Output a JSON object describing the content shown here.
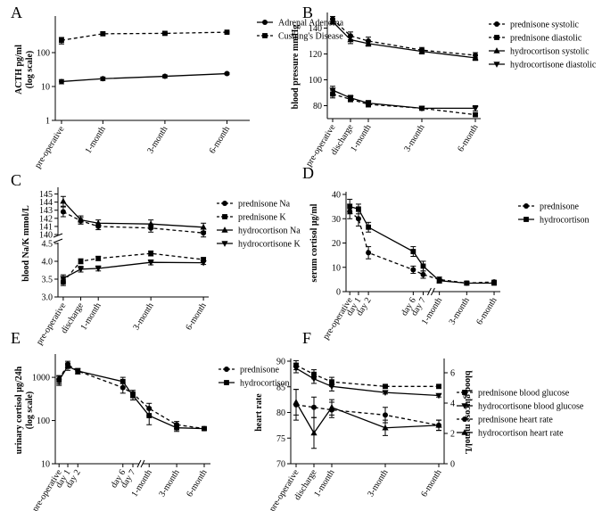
{
  "chart_data": [
    {
      "panel": "A",
      "type": "line",
      "ylabel": "ACTH pg/ml (log scale)",
      "yscale": "log",
      "ylim": [
        1,
        1000
      ],
      "yticks": [
        "1",
        "10",
        "100"
      ],
      "categories": [
        "pre-operative",
        "1-month",
        "3-month",
        "6-month"
      ],
      "x": [
        0,
        1,
        2.5,
        4
      ],
      "legend_position": "right",
      "series": [
        {
          "name": "Adrenal Adenoma",
          "marker": "circle",
          "dash": false,
          "values": [
            14,
            17,
            20,
            24
          ],
          "errors": [
            2,
            2,
            2,
            1.5
          ]
        },
        {
          "name": "Cushing's Disease",
          "marker": "square",
          "dash": true,
          "values": [
            230,
            360,
            370,
            400
          ],
          "errors": [
            50,
            40,
            30,
            20
          ]
        }
      ]
    },
    {
      "panel": "B",
      "type": "line",
      "ylabel": "blood pressure mmHg",
      "ylim": [
        70,
        150
      ],
      "yticks": [
        "80",
        "100",
        "120",
        "140"
      ],
      "categories": [
        "pre-operative",
        "discharge",
        "1-month",
        "3-month",
        "6-month"
      ],
      "x": [
        0,
        0.5,
        1,
        2.5,
        4
      ],
      "legend_position": "right",
      "series": [
        {
          "name": "prednisone systolic",
          "marker": "circle",
          "dash": true,
          "values": [
            147,
            134,
            130,
            123,
            119
          ],
          "errors": [
            2,
            3,
            3,
            2,
            2
          ]
        },
        {
          "name": "prednisone diastolic",
          "marker": "square",
          "dash": true,
          "values": [
            89,
            85,
            81,
            78,
            73
          ],
          "errors": [
            3,
            2,
            2,
            1,
            1
          ]
        },
        {
          "name": "hydrocortison systolic",
          "marker": "triangle-up",
          "dash": false,
          "values": [
            145,
            131,
            128,
            122,
            117
          ],
          "errors": [
            2,
            3,
            2,
            2,
            2
          ]
        },
        {
          "name": "hydrocortisone diastolic",
          "marker": "triangle-down",
          "dash": false,
          "values": [
            92,
            86,
            82,
            78,
            78
          ],
          "errors": [
            3,
            2,
            2,
            1,
            2
          ]
        }
      ]
    },
    {
      "panel": "C",
      "type": "line",
      "ylabel": "blood Na/K mmol/L",
      "split_axis": true,
      "ylim_lower": [
        3.0,
        4.5
      ],
      "ylim_upper": [
        140,
        145.5
      ],
      "yticks_lower": [
        "3.0",
        "3.5",
        "4.0",
        "4.5"
      ],
      "yticks_upper": [
        "140",
        "141",
        "142",
        "143",
        "144",
        "145"
      ],
      "categories": [
        "pre-operative",
        "discharge",
        "1-month",
        "3-month",
        "6-month"
      ],
      "x": [
        0,
        0.5,
        1,
        2.5,
        4
      ],
      "legend_position": "right",
      "series": [
        {
          "name": "prednisone Na",
          "marker": "circle",
          "dash": true,
          "values": [
            142.8,
            141.7,
            141.0,
            140.8,
            140.2
          ],
          "errors": [
            0.6,
            0.4,
            0.4,
            0.5,
            0.5
          ]
        },
        {
          "name": "prednisone K",
          "marker": "square",
          "dash": true,
          "values": [
            3.42,
            4.0,
            4.08,
            4.22,
            4.05
          ],
          "errors": [
            0.1,
            0.07,
            0.06,
            0.07,
            0.05
          ]
        },
        {
          "name": "hydrocortison Na",
          "marker": "triangle-up",
          "dash": false,
          "values": [
            144.1,
            141.8,
            141.4,
            141.3,
            140.9
          ],
          "errors": [
            0.6,
            0.5,
            0.4,
            0.5,
            0.5
          ]
        },
        {
          "name": "hydrocortisone K",
          "marker": "triangle-down",
          "dash": false,
          "values": [
            3.52,
            3.78,
            3.8,
            3.97,
            3.96
          ],
          "errors": [
            0.1,
            0.08,
            0.07,
            0.07,
            0.05
          ]
        }
      ]
    },
    {
      "panel": "D",
      "type": "line",
      "ylabel": "serum cortisol μg/ml",
      "ylim": [
        0,
        40
      ],
      "yticks": [
        "0",
        "10",
        "20",
        "30",
        "40"
      ],
      "categories": [
        "pre-operative",
        "day 1",
        "day 2",
        "day 6",
        "day 7",
        "1-month",
        "3-month",
        "6-month"
      ],
      "x": [
        0,
        0.35,
        0.75,
        2.55,
        2.95,
        3.6,
        4.7,
        5.8
      ],
      "legend_position": "right",
      "series": [
        {
          "name": "prednisone",
          "marker": "circle",
          "dash": true,
          "values": [
            33,
            30,
            16,
            9,
            7,
            5,
            3.5,
            4
          ],
          "errors": [
            3,
            3,
            2.5,
            1.5,
            1.5,
            1,
            0.7,
            0.7
          ]
        },
        {
          "name": "hydrocortison",
          "marker": "square",
          "dash": false,
          "values": [
            35,
            34,
            26.5,
            16.5,
            10.5,
            4.5,
            3.5,
            3.5
          ],
          "errors": [
            3,
            2,
            2,
            2,
            2,
            1,
            0.7,
            0.7
          ]
        }
      ]
    },
    {
      "panel": "E",
      "type": "line",
      "ylabel": "urinary cortisol μg/24h (log scale)",
      "yscale": "log",
      "ylim": [
        10,
        3000
      ],
      "yticks": [
        "10",
        "100",
        "1000"
      ],
      "categories": [
        "pre-operative",
        "day 1",
        "day 2",
        "day 6",
        "day 7",
        "1-month",
        "3-month",
        "6-month"
      ],
      "x": [
        0,
        0.35,
        0.75,
        2.55,
        2.95,
        3.6,
        4.7,
        5.8
      ],
      "legend_position": "right",
      "series": [
        {
          "name": "prednisone",
          "marker": "circle",
          "dash": true,
          "values": [
            900,
            2000,
            1400,
            580,
            420,
            190,
            80,
            65
          ],
          "errors": [
            200,
            350,
            200,
            150,
            80,
            60,
            15,
            5
          ]
        },
        {
          "name": "hydrocortison",
          "marker": "square",
          "dash": false,
          "values": [
            850,
            1800,
            1400,
            800,
            380,
            130,
            68,
            65
          ],
          "errors": [
            200,
            350,
            200,
            200,
            80,
            50,
            12,
            5
          ]
        }
      ]
    },
    {
      "panel": "F",
      "type": "line",
      "ylabel": "heart rate",
      "ylabel_right": "blood glucose mmol/L",
      "ylim": [
        70,
        90
      ],
      "yticks": [
        "70",
        "75",
        "80",
        "85",
        "90"
      ],
      "ylim_right": [
        0,
        7
      ],
      "yticks_right": [
        "0",
        "2",
        "4",
        "6"
      ],
      "categories": [
        "pre-operative",
        "discharge",
        "1-month",
        "3-month",
        "6-month"
      ],
      "x": [
        0,
        0.5,
        1,
        2.5,
        4
      ],
      "legend_position": "right",
      "series": [
        {
          "name": "prednisone blood glucose",
          "marker": "square",
          "dash": true,
          "axis": "right",
          "values": [
            6.5,
            5.9,
            5.4,
            5.1,
            5.1
          ],
          "errors": [
            0.3,
            0.3,
            0.3,
            0.1,
            0.1
          ]
        },
        {
          "name": "hydrocortisone blood glucose",
          "marker": "triangle-down",
          "dash": false,
          "axis": "right",
          "values": [
            6.3,
            5.6,
            5.1,
            4.7,
            4.5
          ],
          "errors": [
            0.3,
            0.3,
            0.3,
            0.1,
            0.1
          ]
        },
        {
          "name": "prednisone heart rate",
          "marker": "circle",
          "dash": true,
          "axis": "left",
          "values": [
            81.5,
            81,
            80.5,
            79.5,
            77.5
          ],
          "errors": [
            3,
            2,
            1.5,
            1.5,
            1
          ]
        },
        {
          "name": "hydrocortison heart rate",
          "marker": "triangle-up",
          "dash": false,
          "axis": "left",
          "values": [
            82,
            76,
            81,
            77,
            77.5
          ],
          "errors": [
            2.5,
            3,
            1.5,
            1.5,
            1
          ]
        }
      ]
    }
  ]
}
